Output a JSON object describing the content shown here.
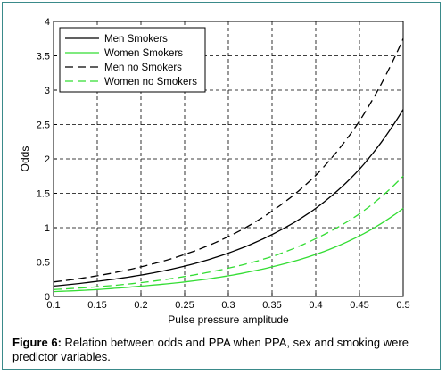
{
  "caption": {
    "label": "Figure 6:",
    "text": " Relation between odds and PPA when PPA, sex and smoking were predictor variables."
  },
  "chart_data": {
    "type": "line",
    "xlabel": "Pulse pressure amplitude",
    "ylabel": "Odds",
    "xlim": [
      0.1,
      0.5
    ],
    "ylim": [
      0,
      4
    ],
    "xticks": [
      "0.1",
      "0.15",
      "0.2",
      "0.25",
      "0.3",
      "0.35",
      "0.4",
      "0.45",
      "0.5"
    ],
    "yticks": [
      "0",
      "0.5",
      "1",
      "1.5",
      "2",
      "2.5",
      "3",
      "3.5",
      "4"
    ],
    "grid": true,
    "legend_position": "top-left",
    "x": [
      0.1,
      0.15,
      0.2,
      0.25,
      0.3,
      0.35,
      0.4,
      0.45,
      0.5
    ],
    "series": [
      {
        "name": "Men Smokers",
        "color": "#000000",
        "dash": "solid",
        "values": [
          0.15,
          0.22,
          0.31,
          0.44,
          0.63,
          0.9,
          1.28,
          1.85,
          2.72
        ]
      },
      {
        "name": "Women Smokers",
        "color": "#33dd33",
        "dash": "solid",
        "values": [
          0.07,
          0.1,
          0.15,
          0.21,
          0.3,
          0.43,
          0.61,
          0.88,
          1.28
        ]
      },
      {
        "name": "Men no Smokers",
        "color": "#000000",
        "dash": "dashed",
        "values": [
          0.21,
          0.3,
          0.43,
          0.61,
          0.87,
          1.24,
          1.76,
          2.55,
          3.75
        ]
      },
      {
        "name": "Women no Smokers",
        "color": "#33dd33",
        "dash": "dashed",
        "values": [
          0.1,
          0.14,
          0.2,
          0.29,
          0.41,
          0.58,
          0.84,
          1.2,
          1.75
        ]
      }
    ]
  }
}
